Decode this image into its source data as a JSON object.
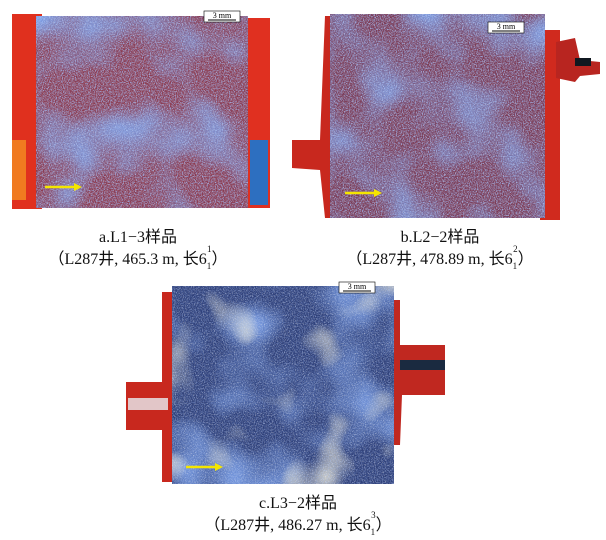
{
  "panels": [
    {
      "scale_bar": "3 mm",
      "title": "a.L1−3样品",
      "detail": "（L287井, 465.3 m, 长6",
      "subscript": "1",
      "superscript": "1",
      "close": "）"
    },
    {
      "scale_bar": "3 mm",
      "title": "b.L2−2样品",
      "detail": "（L287井, 478.89 m, 长6",
      "subscript": "1",
      "superscript": "2",
      "close": "）"
    },
    {
      "scale_bar": "3 mm",
      "title": "c.L3−2样品",
      "detail": "（L287井, 486.27 m, 长6",
      "subscript": "1",
      "superscript": "3",
      "close": "）"
    }
  ]
}
